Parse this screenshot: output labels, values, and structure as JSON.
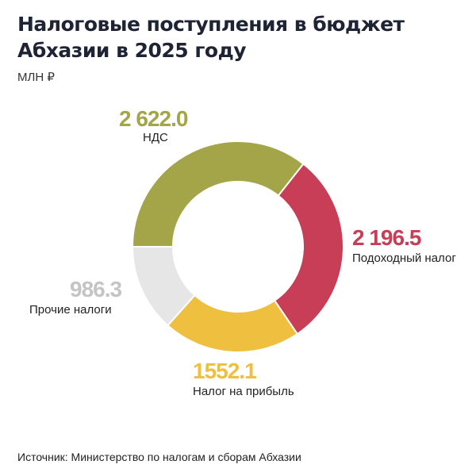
{
  "title": "Налоговые поступления в бюджет Абхазии в 2025 году",
  "unit": "МЛН ₽",
  "source": "Источник: Министерство по налогам и сборам Абхазии",
  "chart_data": {
    "type": "pie",
    "donut": true,
    "title": "Налоговые поступления в бюджет Абхазии в 2025 году",
    "unit": "МЛН ₽",
    "categories": [
      "НДС",
      "Подоходный налог",
      "Налог на прибыль",
      "Прочие налоги"
    ],
    "values": [
      2622.0,
      2196.5,
      1552.1,
      986.3
    ],
    "value_labels": [
      "2 622.0",
      "2 196.5",
      "1552.1",
      "986.3"
    ],
    "colors": [
      "#a3a548",
      "#c83e56",
      "#efbf40",
      "#e6e6e6"
    ],
    "value_colors": [
      "#a3a548",
      "#c83e56",
      "#efbf40",
      "#c4c4c4"
    ],
    "legend": "none"
  }
}
